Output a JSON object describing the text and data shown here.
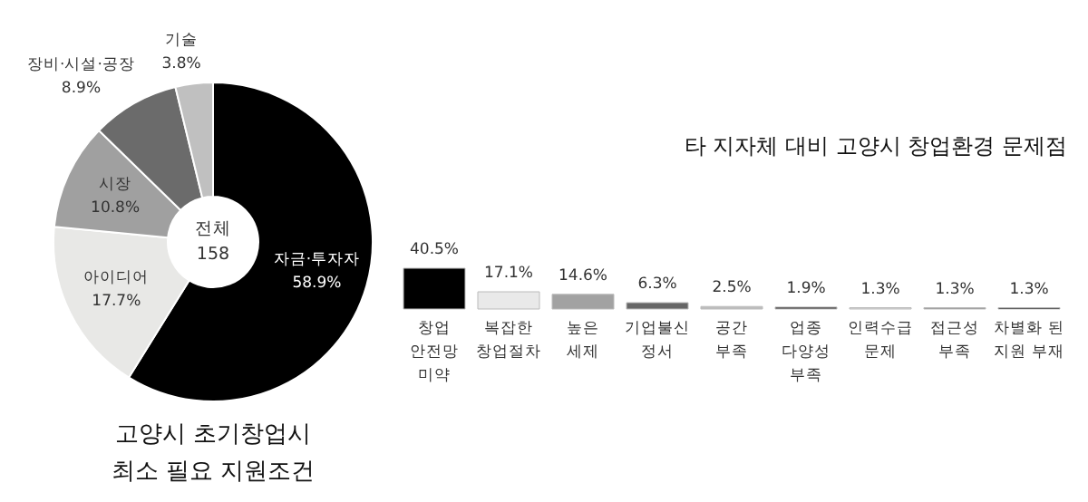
{
  "chart_data": [
    {
      "type": "donut",
      "title": "고양시 초기창업시\n최소 필요 지원조건",
      "annotations": [
        "전체\n158"
      ],
      "categories": [
        "자금·투자자",
        "아이디어",
        "시장",
        "장비·시설·공장",
        "기술"
      ],
      "values": [
        58.9,
        17.7,
        10.8,
        8.9,
        3.8
      ],
      "value_labels": [
        "58.9%",
        "17.7%",
        "10.8%",
        "8.9%",
        "3.8%"
      ],
      "colors": [
        "#000000",
        "#e8e8e6",
        "#a0a0a0",
        "#6b6b6b",
        "#c0c0c0"
      ]
    },
    {
      "type": "bar",
      "title": "타 지자체 대비 고양시 창업환경 문제점",
      "categories": [
        "창업\n안전망\n미약",
        "복잡한\n창업절차",
        "높은\n세제",
        "기업불신\n정서",
        "공간\n부족",
        "업종\n다양성\n부족",
        "인력수급\n문제",
        "접근성\n부족",
        "차별화 된\n지원 부재"
      ],
      "values": [
        40.5,
        17.1,
        14.6,
        6.3,
        2.5,
        1.9,
        1.3,
        1.3,
        1.3
      ],
      "value_labels": [
        "40.5%",
        "17.1%",
        "14.6%",
        "6.3%",
        "2.5%",
        "1.9%",
        "1.3%",
        "1.3%",
        "1.3%"
      ],
      "colors": [
        "#000000",
        "#e9e9e9",
        "#a2a2a2",
        "#666666",
        "#bdbdbd",
        "#3d3a3a",
        "#d6d6d6",
        "#8a8a8a",
        "#000000"
      ]
    }
  ]
}
